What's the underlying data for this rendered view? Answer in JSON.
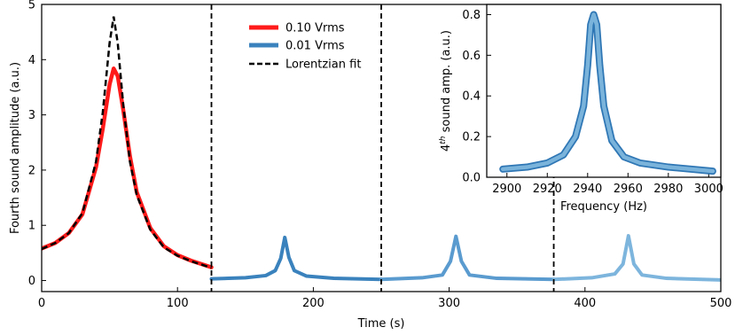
{
  "chart_data": [
    {
      "type": "line",
      "xlabel": "Time (s)",
      "ylabel": "Fourth sound amplitude (a.u.)",
      "xlim": [
        0,
        500
      ],
      "ylim": [
        -0.2,
        5.0
      ],
      "xticks": [
        0,
        100,
        200,
        300,
        400,
        500
      ],
      "yticks": [
        0,
        1,
        2,
        3,
        4,
        5
      ],
      "grid": false,
      "legend_position": "top-center",
      "vlines": [
        125,
        250,
        377
      ],
      "series": [
        {
          "name": "0.10 Vrms",
          "color": "#ff1a1a",
          "style": "solid",
          "x": [
            0,
            10,
            20,
            30,
            40,
            45,
            50,
            53,
            56,
            60,
            65,
            70,
            80,
            90,
            100,
            110,
            120,
            125
          ],
          "y": [
            0.58,
            0.68,
            0.86,
            1.2,
            2.05,
            2.75,
            3.55,
            3.84,
            3.7,
            3.1,
            2.25,
            1.6,
            0.95,
            0.62,
            0.46,
            0.36,
            0.28,
            0.24
          ]
        },
        {
          "name": "0.01 Vrms",
          "color": "#3a82bd",
          "style": "solid",
          "x": [
            125,
            150,
            165,
            172,
            176,
            179,
            182,
            186,
            195,
            215,
            250,
            280,
            295,
            301,
            305,
            309,
            315,
            335,
            377,
            405,
            422,
            428,
            432,
            436,
            442,
            460,
            500
          ],
          "y": [
            0.03,
            0.05,
            0.09,
            0.18,
            0.4,
            0.78,
            0.42,
            0.18,
            0.08,
            0.04,
            0.02,
            0.05,
            0.1,
            0.35,
            0.8,
            0.35,
            0.1,
            0.04,
            0.02,
            0.05,
            0.12,
            0.3,
            0.81,
            0.3,
            0.1,
            0.04,
            0.01
          ]
        },
        {
          "name": "Lorentzian fit",
          "color": "#000000",
          "style": "dashed",
          "x": [
            0,
            10,
            20,
            30,
            40,
            45,
            50,
            53,
            56,
            60,
            65,
            70,
            80,
            90,
            100,
            110,
            120,
            125
          ],
          "y": [
            0.57,
            0.68,
            0.86,
            1.22,
            2.15,
            3.05,
            4.3,
            4.78,
            4.3,
            3.2,
            2.15,
            1.55,
            0.92,
            0.6,
            0.45,
            0.35,
            0.27,
            0.23
          ]
        }
      ]
    },
    {
      "type": "line",
      "xlabel": "Frequency (Hz)",
      "ylabel": "4th sound amp. (a.u.)",
      "xlim": [
        2890,
        3006
      ],
      "ylim": [
        0.0,
        0.85
      ],
      "xticks": [
        2900,
        2920,
        2940,
        2960,
        2980,
        3000
      ],
      "yticks": [
        0.0,
        0.2,
        0.4,
        0.6,
        0.8
      ],
      "grid": false,
      "series": [
        {
          "color": "#7ab3db",
          "x": [
            2898,
            2910,
            2920,
            2928,
            2934,
            2938,
            2940,
            2941.5,
            2943,
            2944.5,
            2946,
            2948,
            2952,
            2958,
            2966,
            2980,
            3002
          ],
          "y": [
            0.04,
            0.05,
            0.07,
            0.11,
            0.2,
            0.35,
            0.55,
            0.75,
            0.8,
            0.75,
            0.55,
            0.35,
            0.18,
            0.1,
            0.07,
            0.05,
            0.03
          ]
        }
      ]
    }
  ]
}
